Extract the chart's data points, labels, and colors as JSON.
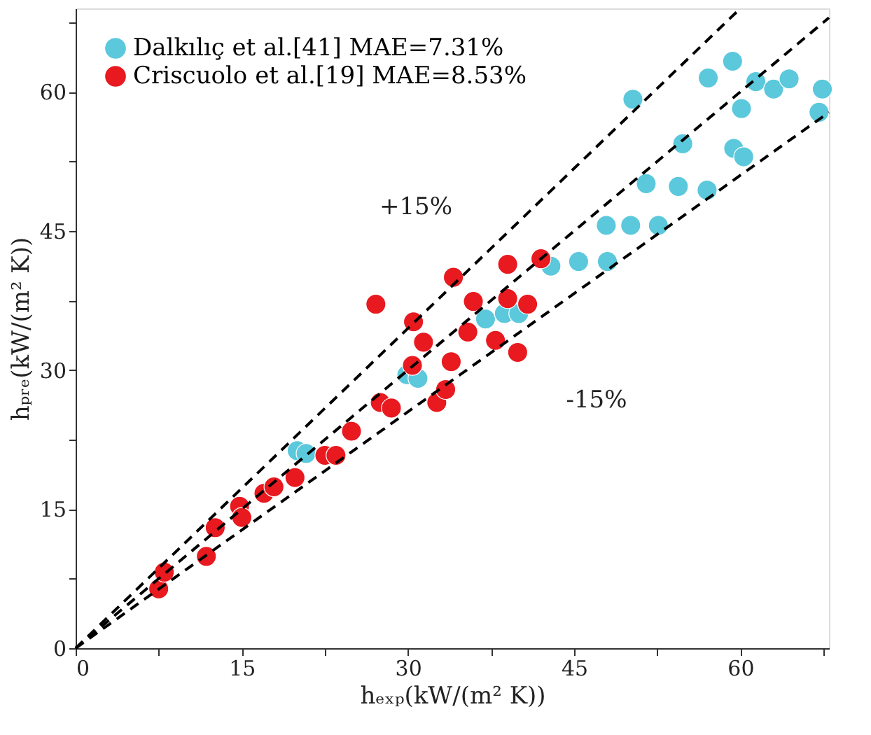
{
  "chart_data": {
    "type": "scatter",
    "xlabel": "hₑₓₚ(kW/(m² K))",
    "ylabel": "hₚᵣₑ(kW/(m² K))",
    "xlim": [
      0,
      68
    ],
    "ylim": [
      0,
      69
    ],
    "xticks": [
      0,
      {
        "value": 7.5,
        "label": null
      },
      15,
      {
        "value": 22.5,
        "label": null
      },
      30,
      {
        "value": 37.5,
        "label": null
      },
      45,
      {
        "value": 52.5,
        "label": null
      },
      60,
      {
        "value": 67.5,
        "label": null
      }
    ],
    "yticks": [
      0,
      {
        "value": 7.5,
        "label": null
      },
      15,
      {
        "value": 22.5,
        "label": null
      },
      30,
      {
        "value": 37.5,
        "label": null
      },
      45,
      {
        "value": 52.5,
        "label": null
      },
      60,
      {
        "value": 67.5,
        "label": null
      }
    ],
    "grid": false,
    "legend": "top left",
    "series": [
      {
        "name": "Dalkılıç et al.[41] MAE=7.31%",
        "marker": "circle",
        "color": "#5bc8dc",
        "x": [
          50.3,
          57.1,
          59.3,
          61.4,
          63.0,
          64.4,
          67.4,
          67.1,
          60.1,
          54.8,
          59.4,
          60.3,
          51.5,
          54.4,
          57.0,
          47.9,
          50.1,
          52.6,
          42.9,
          45.4,
          48.0,
          37.0,
          38.7,
          40.0,
          29.9,
          30.9,
          20.0,
          20.8
        ],
        "values": [
          59.2,
          61.5,
          63.3,
          61.1,
          60.3,
          61.4,
          60.3,
          57.8,
          58.2,
          54.4,
          53.9,
          53.0,
          50.1,
          49.8,
          49.4,
          45.6,
          45.6,
          45.6,
          41.2,
          41.7,
          41.7,
          35.5,
          36.1,
          36.1,
          29.5,
          29.1,
          21.3,
          21.0
        ]
      },
      {
        "name": "Criscuolo et al.[19] MAE=8.53%",
        "marker": "circle",
        "color": "#e8191f",
        "x": [
          7.5,
          8.0,
          11.8,
          12.6,
          14.8,
          15.0,
          17.0,
          17.9,
          19.8,
          22.5,
          23.5,
          24.9,
          27.5,
          28.5,
          27.1,
          30.5,
          31.4,
          30.4,
          32.6,
          33.4,
          33.9,
          34.1,
          35.9,
          35.4,
          37.9,
          39.9,
          39.0,
          40.8,
          39.0,
          42.0
        ],
        "values": [
          6.4,
          8.2,
          9.9,
          13.0,
          15.3,
          14.1,
          16.7,
          17.4,
          18.4,
          20.8,
          20.8,
          23.4,
          26.5,
          25.9,
          37.1,
          35.2,
          33.0,
          30.5,
          26.5,
          27.9,
          30.9,
          40.0,
          37.4,
          34.1,
          33.2,
          31.9,
          37.7,
          37.1,
          41.4,
          42.0
        ]
      },
      {
        "type": "line",
        "color": "#000000",
        "line_style": "dashed",
        "x": [
          0,
          60
        ],
        "values": [
          0,
          69
        ]
      },
      {
        "type": "line",
        "color": "#000000",
        "line_style": "dashed",
        "x": [
          0,
          68
        ],
        "values": [
          0,
          68
        ]
      },
      {
        "type": "line",
        "color": "#000000",
        "line_style": "dashed",
        "x": [
          0,
          68
        ],
        "values": [
          0,
          57.8
        ]
      }
    ],
    "annotations": [
      "+15%",
      "-15%"
    ]
  }
}
